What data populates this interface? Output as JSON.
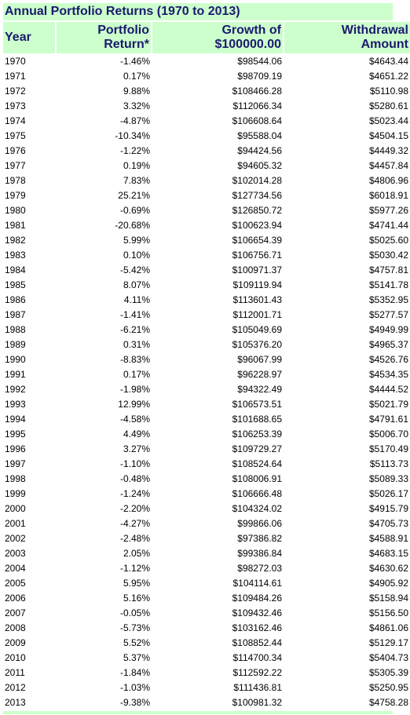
{
  "title": "Annual Portfolio Returns (1970 to 2013)",
  "columns": {
    "year": "Year",
    "return_line1": "Portfolio",
    "return_line2": "Return*",
    "growth_line1": "Growth of",
    "growth_line2": "$100000.00",
    "withdrawal_line1": "Withdrawal",
    "withdrawal_line2": "Amount"
  },
  "rows": [
    {
      "year": "1970",
      "ret": "-1.46%",
      "growth": "$98544.06",
      "wd": "$4643.44"
    },
    {
      "year": "1971",
      "ret": "0.17%",
      "growth": "$98709.19",
      "wd": "$4651.22"
    },
    {
      "year": "1972",
      "ret": "9.88%",
      "growth": "$108466.28",
      "wd": "$5110.98"
    },
    {
      "year": "1973",
      "ret": "3.32%",
      "growth": "$112066.34",
      "wd": "$5280.61"
    },
    {
      "year": "1974",
      "ret": "-4.87%",
      "growth": "$106608.64",
      "wd": "$5023.44"
    },
    {
      "year": "1975",
      "ret": "-10.34%",
      "growth": "$95588.04",
      "wd": "$4504.15"
    },
    {
      "year": "1976",
      "ret": "-1.22%",
      "growth": "$94424.56",
      "wd": "$4449.32"
    },
    {
      "year": "1977",
      "ret": "0.19%",
      "growth": "$94605.32",
      "wd": "$4457.84"
    },
    {
      "year": "1978",
      "ret": "7.83%",
      "growth": "$102014.28",
      "wd": "$4806.96"
    },
    {
      "year": "1979",
      "ret": "25.21%",
      "growth": "$127734.56",
      "wd": "$6018.91"
    },
    {
      "year": "1980",
      "ret": "-0.69%",
      "growth": "$126850.72",
      "wd": "$5977.26"
    },
    {
      "year": "1981",
      "ret": "-20.68%",
      "growth": "$100623.94",
      "wd": "$4741.44"
    },
    {
      "year": "1982",
      "ret": "5.99%",
      "growth": "$106654.39",
      "wd": "$5025.60"
    },
    {
      "year": "1983",
      "ret": "0.10%",
      "growth": "$106756.71",
      "wd": "$5030.42"
    },
    {
      "year": "1984",
      "ret": "-5.42%",
      "growth": "$100971.37",
      "wd": "$4757.81"
    },
    {
      "year": "1985",
      "ret": "8.07%",
      "growth": "$109119.94",
      "wd": "$5141.78"
    },
    {
      "year": "1986",
      "ret": "4.11%",
      "growth": "$113601.43",
      "wd": "$5352.95"
    },
    {
      "year": "1987",
      "ret": "-1.41%",
      "growth": "$112001.71",
      "wd": "$5277.57"
    },
    {
      "year": "1988",
      "ret": "-6.21%",
      "growth": "$105049.69",
      "wd": "$4949.99"
    },
    {
      "year": "1989",
      "ret": "0.31%",
      "growth": "$105376.20",
      "wd": "$4965.37"
    },
    {
      "year": "1990",
      "ret": "-8.83%",
      "growth": "$96067.99",
      "wd": "$4526.76"
    },
    {
      "year": "1991",
      "ret": "0.17%",
      "growth": "$96228.97",
      "wd": "$4534.35"
    },
    {
      "year": "1992",
      "ret": "-1.98%",
      "growth": "$94322.49",
      "wd": "$4444.52"
    },
    {
      "year": "1993",
      "ret": "12.99%",
      "growth": "$106573.51",
      "wd": "$5021.79"
    },
    {
      "year": "1994",
      "ret": "-4.58%",
      "growth": "$101688.65",
      "wd": "$4791.61"
    },
    {
      "year": "1995",
      "ret": "4.49%",
      "growth": "$106253.39",
      "wd": "$5006.70"
    },
    {
      "year": "1996",
      "ret": "3.27%",
      "growth": "$109729.27",
      "wd": "$5170.49"
    },
    {
      "year": "1997",
      "ret": "-1.10%",
      "growth": "$108524.64",
      "wd": "$5113.73"
    },
    {
      "year": "1998",
      "ret": "-0.48%",
      "growth": "$108006.91",
      "wd": "$5089.33"
    },
    {
      "year": "1999",
      "ret": "-1.24%",
      "growth": "$106666.48",
      "wd": "$5026.17"
    },
    {
      "year": "2000",
      "ret": "-2.20%",
      "growth": "$104324.02",
      "wd": "$4915.79"
    },
    {
      "year": "2001",
      "ret": "-4.27%",
      "growth": "$99866.06",
      "wd": "$4705.73"
    },
    {
      "year": "2002",
      "ret": "-2.48%",
      "growth": "$97386.82",
      "wd": "$4588.91"
    },
    {
      "year": "2003",
      "ret": "2.05%",
      "growth": "$99386.84",
      "wd": "$4683.15"
    },
    {
      "year": "2004",
      "ret": "-1.12%",
      "growth": "$98272.03",
      "wd": "$4630.62"
    },
    {
      "year": "2005",
      "ret": "5.95%",
      "growth": "$104114.61",
      "wd": "$4905.92"
    },
    {
      "year": "2006",
      "ret": "5.16%",
      "growth": "$109484.26",
      "wd": "$5158.94"
    },
    {
      "year": "2007",
      "ret": "-0.05%",
      "growth": "$109432.46",
      "wd": "$5156.50"
    },
    {
      "year": "2008",
      "ret": "-5.73%",
      "growth": "$103162.46",
      "wd": "$4861.06"
    },
    {
      "year": "2009",
      "ret": "5.52%",
      "growth": "$108852.44",
      "wd": "$5129.17"
    },
    {
      "year": "2010",
      "ret": "5.37%",
      "growth": "$114700.34",
      "wd": "$5404.73"
    },
    {
      "year": "2011",
      "ret": "-1.84%",
      "growth": "$112592.22",
      "wd": "$5305.39"
    },
    {
      "year": "2012",
      "ret": "-1.03%",
      "growth": "$111436.81",
      "wd": "$5250.95"
    },
    {
      "year": "2013",
      "ret": "-9.38%",
      "growth": "$100981.32",
      "wd": "$4758.28"
    }
  ]
}
